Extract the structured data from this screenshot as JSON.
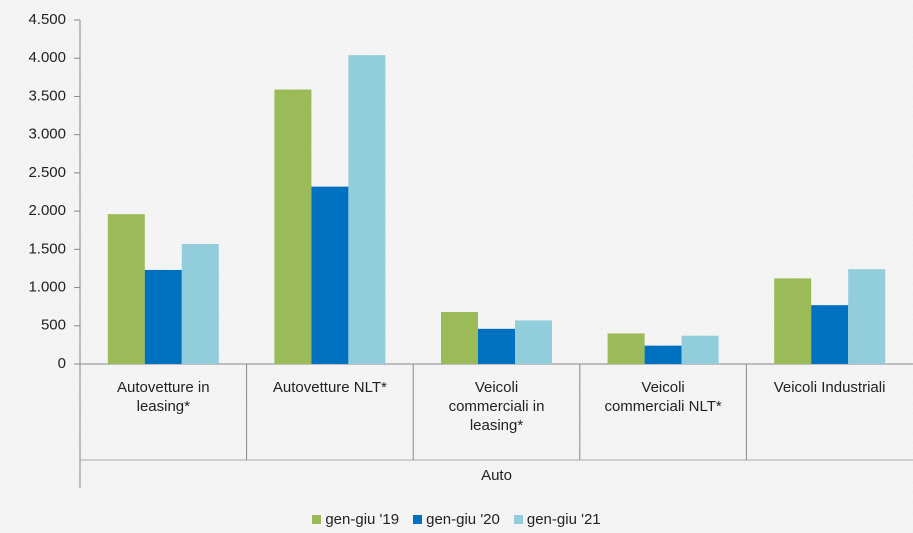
{
  "chart_data": {
    "type": "bar",
    "categories": [
      "Autovetture in leasing*",
      "Autovetture NLT*",
      "Veicoli commerciali in leasing*",
      "Veicoli commerciali NLT*",
      "Veicoli Industriali"
    ],
    "category_group": "Auto",
    "series": [
      {
        "name": "gen-giu '19",
        "color": "#9bbb59",
        "values": [
          1960,
          3590,
          680,
          400,
          1120
        ]
      },
      {
        "name": "gen-giu '20",
        "color": "#0070c0",
        "values": [
          1230,
          2320,
          460,
          240,
          770
        ]
      },
      {
        "name": "gen-giu '21",
        "color": "#92cddc",
        "values": [
          1570,
          4040,
          570,
          370,
          1240
        ]
      }
    ],
    "ylim": [
      0,
      4500
    ],
    "yticks": [
      0,
      500,
      {
        "value": 1000,
        "label": "1.000"
      },
      {
        "value": 1500,
        "label": "1.500"
      },
      {
        "value": 2000,
        "label": "2.000"
      },
      {
        "value": 2500,
        "label": "2.500"
      },
      {
        "value": 3000,
        "label": "3.000"
      },
      {
        "value": 3500,
        "label": "3.500"
      },
      {
        "value": 4000,
        "label": "4.000"
      },
      {
        "value": 4500,
        "label": "4.500"
      }
    ],
    "legend": "bottom"
  }
}
